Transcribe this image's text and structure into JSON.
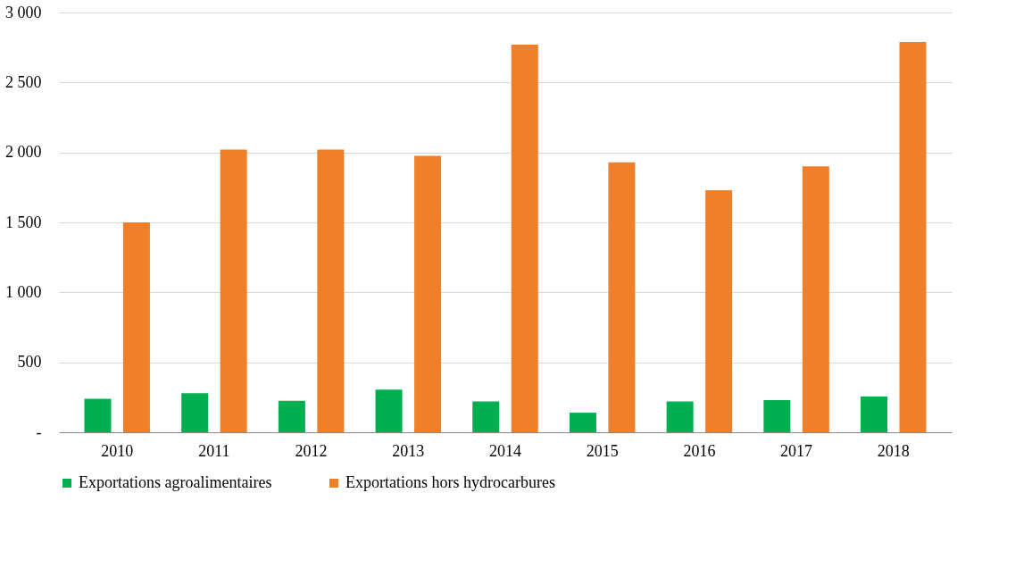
{
  "chart_data": {
    "type": "bar",
    "categories": [
      "2010",
      "2011",
      "2012",
      "2013",
      "2014",
      "2015",
      "2016",
      "2017",
      "2018"
    ],
    "series": [
      {
        "name": "Exportations agroalimentaires",
        "color": "#00b050",
        "values": [
          240,
          280,
          225,
          305,
          220,
          140,
          220,
          230,
          255
        ]
      },
      {
        "name": "Exportations hors hydrocarbures",
        "color": "#f07f2a",
        "values": [
          1500,
          2020,
          2020,
          1975,
          2770,
          1930,
          1730,
          1900,
          2790
        ]
      }
    ],
    "ylim": [
      0,
      3000
    ],
    "yticks": [
      {
        "value": 0,
        "label": "-"
      },
      500,
      {
        "value": 1000,
        "label": "1 000"
      },
      {
        "value": 1500,
        "label": "1 500"
      },
      {
        "value": 2000,
        "label": "2 000"
      },
      {
        "value": 2500,
        "label": "2 500"
      },
      {
        "value": 3000,
        "label": "3 000"
      }
    ],
    "grid": "y",
    "legend": "bottom"
  }
}
